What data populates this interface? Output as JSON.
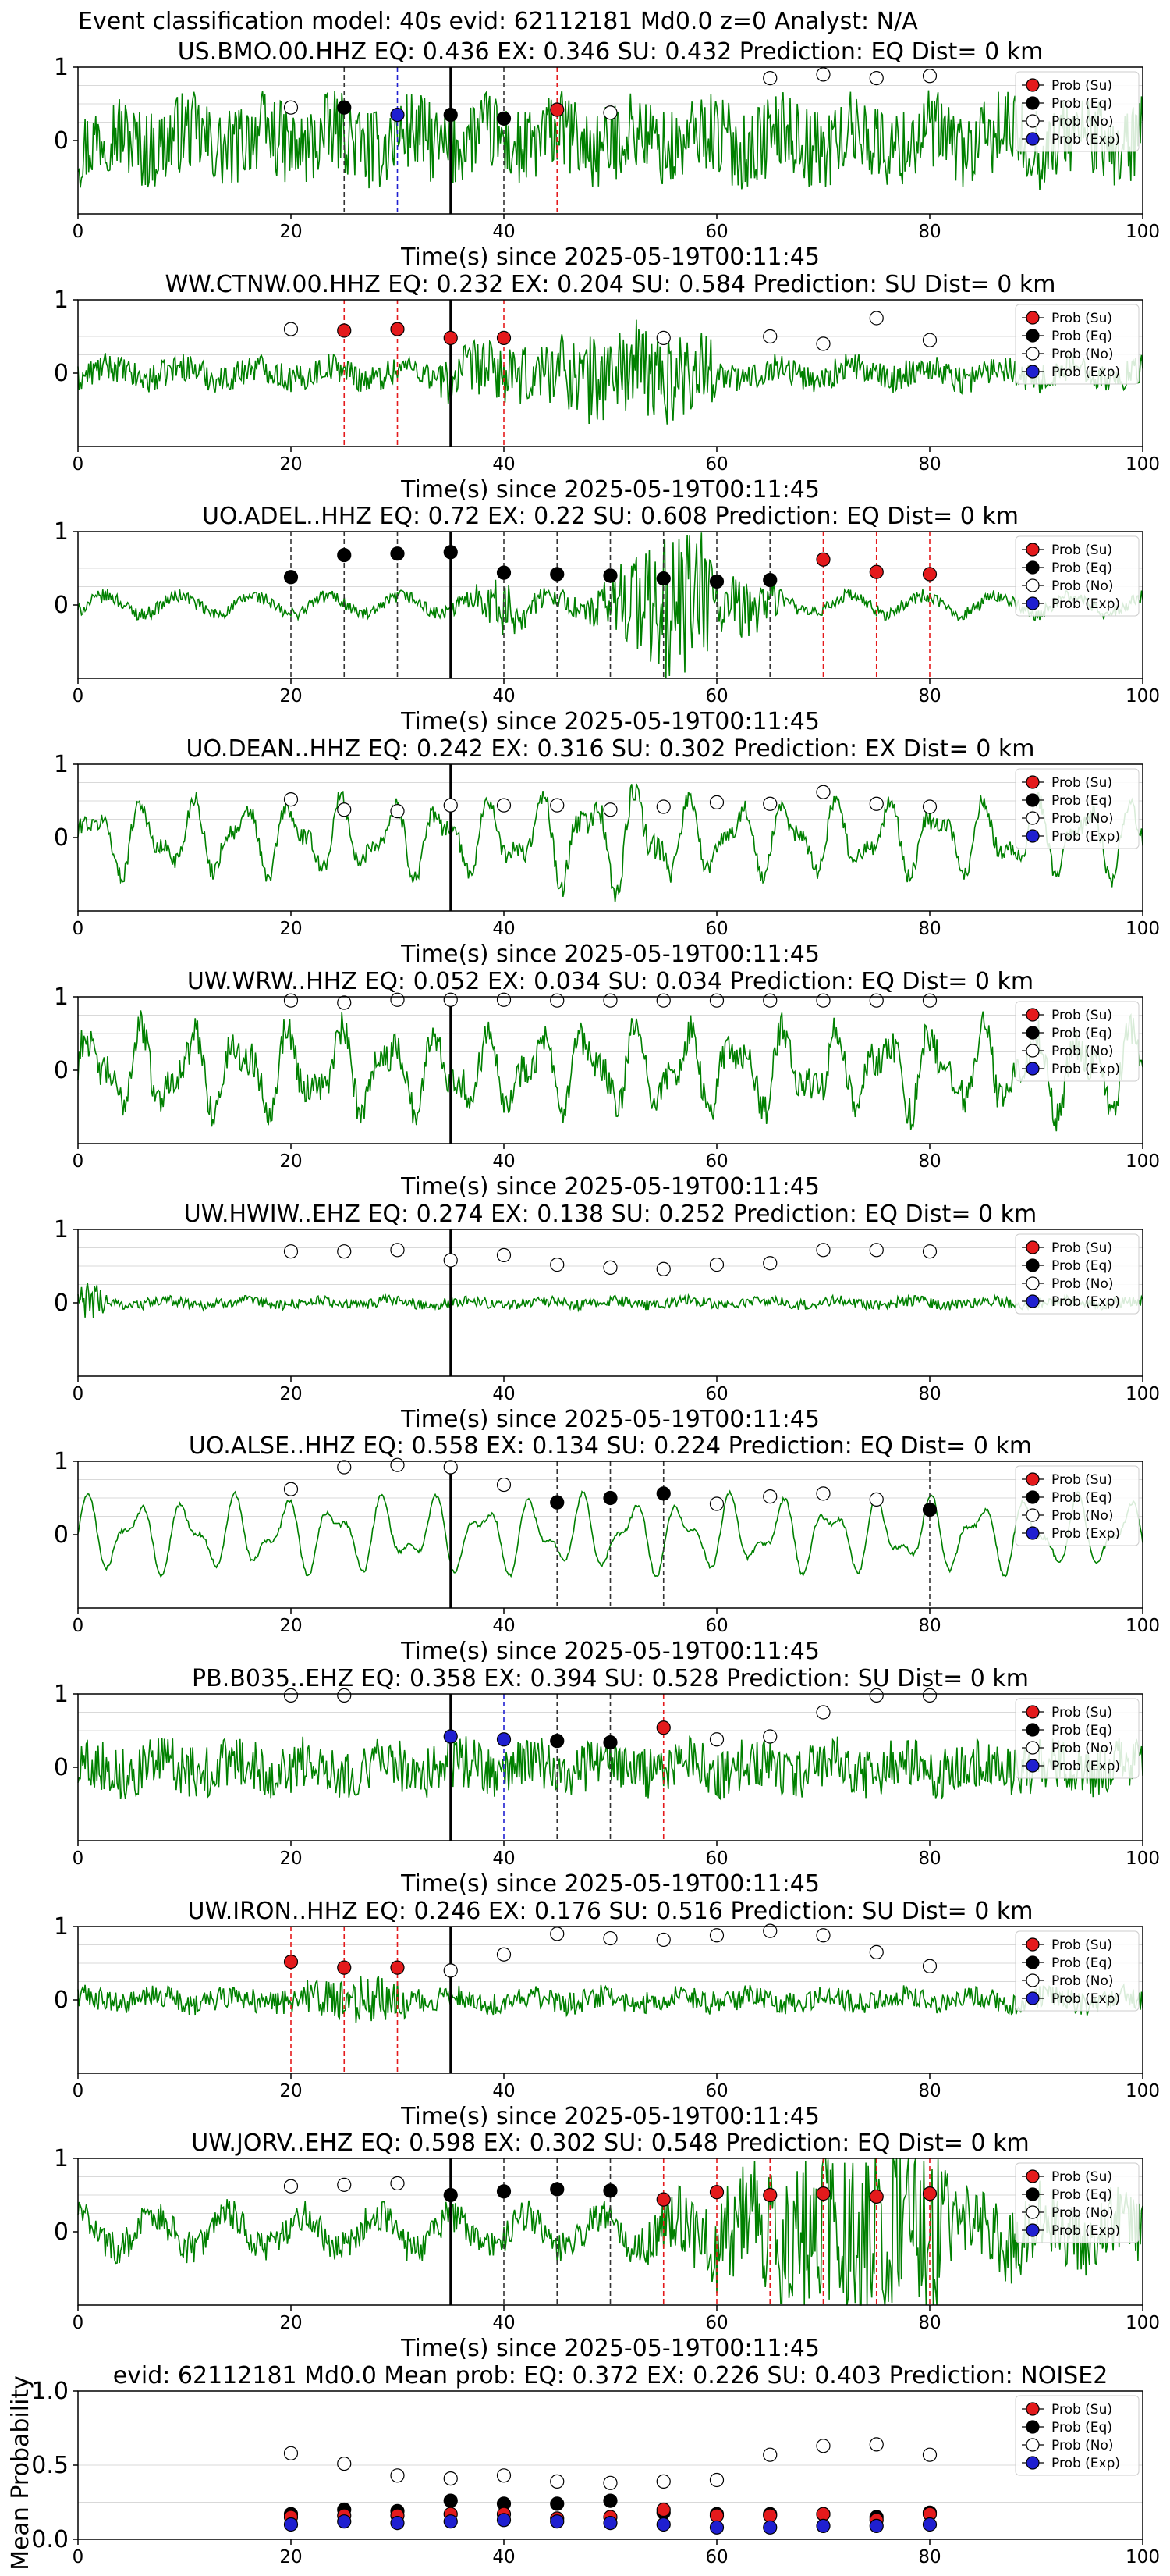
{
  "figure_title": "Event classification model: 40s evid: 62112181 Md0.0 z=0 Analyst: N/A",
  "legend_labels": [
    "Prob (Su)",
    "Prob (Eq)",
    "Prob (No)",
    "Prob (Exp)"
  ],
  "colors": {
    "waveform": "#008000",
    "su": "#e41a1c",
    "eq": "#000000",
    "no": "#ffffff",
    "exp": "#1f1fd0",
    "marker_edge": "#000000",
    "grid": "#d9d9d9"
  },
  "chart_data": [
    {
      "type": "scatter",
      "station": "US.BMO.00.HHZ",
      "title": "US.BMO.00.HHZ   EQ: 0.436  EX: 0.346  SU: 0.432   Prediction: EQ    Dist= 0 km",
      "xlabel": "Time(s) since 2025-05-19T00:11:45",
      "xlim": [
        0,
        100
      ],
      "xticks": [
        0,
        20,
        40,
        60,
        80,
        100
      ],
      "ylim": [
        -1,
        1
      ],
      "yticks": [
        0,
        1
      ],
      "wave_style": "broadband",
      "wave_amp": 0.55,
      "pick_line": 35,
      "points": [
        {
          "x": 20,
          "y": 0.45,
          "cls": "no"
        },
        {
          "x": 25,
          "y": 0.45,
          "cls": "eq"
        },
        {
          "x": 30,
          "y": 0.35,
          "cls": "exp"
        },
        {
          "x": 35,
          "y": 0.35,
          "cls": "eq"
        },
        {
          "x": 40,
          "y": 0.3,
          "cls": "eq"
        },
        {
          "x": 45,
          "y": 0.42,
          "cls": "su"
        },
        {
          "x": 50,
          "y": 0.38,
          "cls": "no"
        },
        {
          "x": 65,
          "y": 0.85,
          "cls": "no"
        },
        {
          "x": 70,
          "y": 0.9,
          "cls": "no"
        },
        {
          "x": 75,
          "y": 0.85,
          "cls": "no"
        },
        {
          "x": 80,
          "y": 0.88,
          "cls": "no"
        }
      ]
    },
    {
      "type": "scatter",
      "station": "WW.CTNW.00.HHZ",
      "title": "WW.CTNW.00.HHZ   EQ: 0.232  EX: 0.204  SU: 0.584   Prediction: SU    Dist= 0 km",
      "xlabel": "Time(s) since 2025-05-19T00:11:45",
      "xlim": [
        0,
        100
      ],
      "xticks": [
        0,
        20,
        40,
        60,
        80,
        100
      ],
      "ylim": [
        -1,
        1
      ],
      "yticks": [
        0,
        1
      ],
      "wave_style": "noisy_burst",
      "wave_amp": 0.35,
      "pick_line": 35,
      "points": [
        {
          "x": 20,
          "y": 0.6,
          "cls": "no"
        },
        {
          "x": 25,
          "y": 0.58,
          "cls": "su"
        },
        {
          "x": 30,
          "y": 0.6,
          "cls": "su"
        },
        {
          "x": 35,
          "y": 0.48,
          "cls": "su"
        },
        {
          "x": 40,
          "y": 0.48,
          "cls": "su"
        },
        {
          "x": 55,
          "y": 0.48,
          "cls": "no"
        },
        {
          "x": 65,
          "y": 0.5,
          "cls": "no"
        },
        {
          "x": 70,
          "y": 0.4,
          "cls": "no"
        },
        {
          "x": 75,
          "y": 0.75,
          "cls": "no"
        },
        {
          "x": 80,
          "y": 0.45,
          "cls": "no"
        }
      ]
    },
    {
      "type": "scatter",
      "station": "UO.ADEL..HHZ",
      "title": "UO.ADEL..HHZ   EQ: 0.72  EX: 0.22  SU: 0.608   Prediction: EQ    Dist= 0 km",
      "xlabel": "Time(s) since 2025-05-19T00:11:45",
      "xlim": [
        0,
        100
      ],
      "xticks": [
        0,
        20,
        40,
        60,
        80,
        100
      ],
      "ylim": [
        -1,
        1
      ],
      "yticks": [
        0,
        1
      ],
      "wave_style": "quiet_event",
      "wave_amp": 0.5,
      "pick_line": 35,
      "points": [
        {
          "x": 20,
          "y": 0.38,
          "cls": "eq"
        },
        {
          "x": 25,
          "y": 0.68,
          "cls": "eq"
        },
        {
          "x": 30,
          "y": 0.7,
          "cls": "eq"
        },
        {
          "x": 35,
          "y": 0.72,
          "cls": "eq"
        },
        {
          "x": 40,
          "y": 0.44,
          "cls": "eq"
        },
        {
          "x": 45,
          "y": 0.42,
          "cls": "eq"
        },
        {
          "x": 50,
          "y": 0.4,
          "cls": "eq"
        },
        {
          "x": 55,
          "y": 0.36,
          "cls": "eq"
        },
        {
          "x": 60,
          "y": 0.32,
          "cls": "eq"
        },
        {
          "x": 65,
          "y": 0.34,
          "cls": "eq"
        },
        {
          "x": 70,
          "y": 0.62,
          "cls": "su"
        },
        {
          "x": 75,
          "y": 0.45,
          "cls": "su"
        },
        {
          "x": 80,
          "y": 0.42,
          "cls": "su"
        }
      ]
    },
    {
      "type": "scatter",
      "station": "UO.DEAN..HHZ",
      "title": "UO.DEAN..HHZ   EQ: 0.242  EX: 0.316  SU: 0.302   Prediction: EX    Dist= 0 km",
      "xlabel": "Time(s) since 2025-05-19T00:11:45",
      "xlim": [
        0,
        100
      ],
      "xticks": [
        0,
        20,
        40,
        60,
        80,
        100
      ],
      "ylim": [
        -1,
        1
      ],
      "yticks": [
        0,
        1
      ],
      "wave_style": "lowfreq",
      "wave_amp": 0.6,
      "pick_line": 35,
      "points": [
        {
          "x": 20,
          "y": 0.52,
          "cls": "no"
        },
        {
          "x": 25,
          "y": 0.38,
          "cls": "no"
        },
        {
          "x": 30,
          "y": 0.36,
          "cls": "no"
        },
        {
          "x": 35,
          "y": 0.44,
          "cls": "no"
        },
        {
          "x": 40,
          "y": 0.44,
          "cls": "no"
        },
        {
          "x": 45,
          "y": 0.44,
          "cls": "no"
        },
        {
          "x": 50,
          "y": 0.38,
          "cls": "no"
        },
        {
          "x": 55,
          "y": 0.42,
          "cls": "no"
        },
        {
          "x": 60,
          "y": 0.48,
          "cls": "no"
        },
        {
          "x": 65,
          "y": 0.46,
          "cls": "no"
        },
        {
          "x": 70,
          "y": 0.62,
          "cls": "no"
        },
        {
          "x": 75,
          "y": 0.46,
          "cls": "no"
        },
        {
          "x": 80,
          "y": 0.42,
          "cls": "no"
        }
      ]
    },
    {
      "type": "scatter",
      "station": "UW.WRW..HHZ",
      "title": "UW.WRW..HHZ   EQ: 0.052  EX: 0.034  SU: 0.034   Prediction: EQ    Dist= 0 km",
      "xlabel": "Time(s) since 2025-05-19T00:11:45",
      "xlim": [
        0,
        100
      ],
      "xticks": [
        0,
        20,
        40,
        60,
        80,
        100
      ],
      "ylim": [
        -1,
        1
      ],
      "yticks": [
        0,
        1
      ],
      "wave_style": "lowfreq_noisy",
      "wave_amp": 0.65,
      "pick_line": 35,
      "points": [
        {
          "x": 20,
          "y": 0.95,
          "cls": "no"
        },
        {
          "x": 25,
          "y": 0.92,
          "cls": "no"
        },
        {
          "x": 30,
          "y": 0.96,
          "cls": "no"
        },
        {
          "x": 35,
          "y": 0.96,
          "cls": "no"
        },
        {
          "x": 40,
          "y": 0.96,
          "cls": "no"
        },
        {
          "x": 45,
          "y": 0.95,
          "cls": "no"
        },
        {
          "x": 50,
          "y": 0.95,
          "cls": "no"
        },
        {
          "x": 55,
          "y": 0.95,
          "cls": "no"
        },
        {
          "x": 60,
          "y": 0.95,
          "cls": "no"
        },
        {
          "x": 65,
          "y": 0.95,
          "cls": "no"
        },
        {
          "x": 70,
          "y": 0.95,
          "cls": "no"
        },
        {
          "x": 75,
          "y": 0.95,
          "cls": "no"
        },
        {
          "x": 80,
          "y": 0.95,
          "cls": "no"
        }
      ]
    },
    {
      "type": "scatter",
      "station": "UW.HWIW..EHZ",
      "title": "UW.HWIW..EHZ   EQ: 0.274  EX: 0.138  SU: 0.252   Prediction: EQ    Dist= 0 km",
      "xlabel": "Time(s) since 2025-05-19T00:11:45",
      "xlim": [
        0,
        100
      ],
      "xticks": [
        0,
        20,
        40,
        60,
        80,
        100
      ],
      "ylim": [
        -1,
        1
      ],
      "yticks": [
        0,
        1
      ],
      "wave_style": "quiet",
      "wave_amp": 0.12,
      "pick_line": 35,
      "points": [
        {
          "x": 20,
          "y": 0.7,
          "cls": "no"
        },
        {
          "x": 25,
          "y": 0.7,
          "cls": "no"
        },
        {
          "x": 30,
          "y": 0.72,
          "cls": "no"
        },
        {
          "x": 35,
          "y": 0.58,
          "cls": "no"
        },
        {
          "x": 40,
          "y": 0.65,
          "cls": "no"
        },
        {
          "x": 45,
          "y": 0.52,
          "cls": "no"
        },
        {
          "x": 50,
          "y": 0.48,
          "cls": "no"
        },
        {
          "x": 55,
          "y": 0.46,
          "cls": "no"
        },
        {
          "x": 60,
          "y": 0.52,
          "cls": "no"
        },
        {
          "x": 65,
          "y": 0.54,
          "cls": "no"
        },
        {
          "x": 70,
          "y": 0.72,
          "cls": "no"
        },
        {
          "x": 75,
          "y": 0.72,
          "cls": "no"
        },
        {
          "x": 80,
          "y": 0.7,
          "cls": "no"
        }
      ]
    },
    {
      "type": "scatter",
      "station": "UO.ALSE..HHZ",
      "title": "UO.ALSE..HHZ   EQ: 0.558  EX: 0.134  SU: 0.224   Prediction: EQ    Dist= 0 km",
      "xlabel": "Time(s) since 2025-05-19T00:11:45",
      "xlim": [
        0,
        100
      ],
      "xticks": [
        0,
        20,
        40,
        60,
        80,
        100
      ],
      "ylim": [
        -1,
        1
      ],
      "yticks": [
        0,
        1
      ],
      "wave_style": "smooth_lowfreq",
      "wave_amp": 0.6,
      "pick_line": 35,
      "points": [
        {
          "x": 20,
          "y": 0.62,
          "cls": "no"
        },
        {
          "x": 25,
          "y": 0.92,
          "cls": "no"
        },
        {
          "x": 30,
          "y": 0.95,
          "cls": "no"
        },
        {
          "x": 35,
          "y": 0.92,
          "cls": "no"
        },
        {
          "x": 40,
          "y": 0.68,
          "cls": "no"
        },
        {
          "x": 45,
          "y": 0.44,
          "cls": "eq"
        },
        {
          "x": 50,
          "y": 0.5,
          "cls": "eq"
        },
        {
          "x": 55,
          "y": 0.56,
          "cls": "eq"
        },
        {
          "x": 60,
          "y": 0.42,
          "cls": "no"
        },
        {
          "x": 65,
          "y": 0.52,
          "cls": "no"
        },
        {
          "x": 70,
          "y": 0.56,
          "cls": "no"
        },
        {
          "x": 75,
          "y": 0.48,
          "cls": "no"
        },
        {
          "x": 80,
          "y": 0.34,
          "cls": "eq"
        }
      ]
    },
    {
      "type": "scatter",
      "station": "PB.B035..EHZ",
      "title": "PB.B035..EHZ   EQ: 0.358  EX: 0.394  SU: 0.528   Prediction: SU    Dist= 0 km",
      "xlabel": "Time(s) since 2025-05-19T00:11:45",
      "xlim": [
        0,
        100
      ],
      "xticks": [
        0,
        20,
        40,
        60,
        80,
        100
      ],
      "ylim": [
        -1,
        1
      ],
      "yticks": [
        0,
        1
      ],
      "wave_style": "noisy",
      "wave_amp": 0.35,
      "pick_line": 35,
      "points": [
        {
          "x": 20,
          "y": 0.98,
          "cls": "no"
        },
        {
          "x": 25,
          "y": 0.98,
          "cls": "no"
        },
        {
          "x": 35,
          "y": 0.42,
          "cls": "exp"
        },
        {
          "x": 40,
          "y": 0.38,
          "cls": "exp"
        },
        {
          "x": 45,
          "y": 0.36,
          "cls": "eq"
        },
        {
          "x": 50,
          "y": 0.34,
          "cls": "eq"
        },
        {
          "x": 55,
          "y": 0.54,
          "cls": "su"
        },
        {
          "x": 60,
          "y": 0.38,
          "cls": "no"
        },
        {
          "x": 65,
          "y": 0.42,
          "cls": "no"
        },
        {
          "x": 70,
          "y": 0.75,
          "cls": "no"
        },
        {
          "x": 75,
          "y": 0.98,
          "cls": "no"
        },
        {
          "x": 80,
          "y": 0.98,
          "cls": "no"
        }
      ]
    },
    {
      "type": "scatter",
      "station": "UW.IRON..HHZ",
      "title": "UW.IRON..HHZ   EQ: 0.246  EX: 0.176  SU: 0.516   Prediction: SU    Dist= 0 km",
      "xlabel": "Time(s) since 2025-05-19T00:11:45",
      "xlim": [
        0,
        100
      ],
      "xticks": [
        0,
        20,
        40,
        60,
        80,
        100
      ],
      "ylim": [
        -1,
        1
      ],
      "yticks": [
        0,
        1
      ],
      "wave_style": "quiet_noisy",
      "wave_amp": 0.22,
      "pick_line": 35,
      "points": [
        {
          "x": 20,
          "y": 0.52,
          "cls": "su"
        },
        {
          "x": 25,
          "y": 0.44,
          "cls": "su"
        },
        {
          "x": 30,
          "y": 0.44,
          "cls": "su"
        },
        {
          "x": 35,
          "y": 0.4,
          "cls": "no"
        },
        {
          "x": 40,
          "y": 0.62,
          "cls": "no"
        },
        {
          "x": 45,
          "y": 0.9,
          "cls": "no"
        },
        {
          "x": 50,
          "y": 0.84,
          "cls": "no"
        },
        {
          "x": 55,
          "y": 0.82,
          "cls": "no"
        },
        {
          "x": 60,
          "y": 0.88,
          "cls": "no"
        },
        {
          "x": 65,
          "y": 0.94,
          "cls": "no"
        },
        {
          "x": 70,
          "y": 0.88,
          "cls": "no"
        },
        {
          "x": 75,
          "y": 0.65,
          "cls": "no"
        },
        {
          "x": 80,
          "y": 0.46,
          "cls": "no"
        }
      ]
    },
    {
      "type": "scatter",
      "station": "UW.JORV..EHZ",
      "title": "UW.JORV..EHZ   EQ: 0.598  EX: 0.302  SU: 0.548   Prediction: EQ    Dist= 0 km",
      "xlabel": "Time(s) since 2025-05-19T00:11:45",
      "xlim": [
        0,
        100
      ],
      "xticks": [
        0,
        20,
        40,
        60,
        80,
        100
      ],
      "ylim": [
        -1,
        1
      ],
      "yticks": [
        0,
        1
      ],
      "wave_style": "growing",
      "wave_amp": 0.9,
      "pick_line": 35,
      "points": [
        {
          "x": 20,
          "y": 0.62,
          "cls": "no"
        },
        {
          "x": 25,
          "y": 0.64,
          "cls": "no"
        },
        {
          "x": 30,
          "y": 0.66,
          "cls": "no"
        },
        {
          "x": 35,
          "y": 0.5,
          "cls": "eq"
        },
        {
          "x": 40,
          "y": 0.55,
          "cls": "eq"
        },
        {
          "x": 45,
          "y": 0.58,
          "cls": "eq"
        },
        {
          "x": 50,
          "y": 0.56,
          "cls": "eq"
        },
        {
          "x": 55,
          "y": 0.44,
          "cls": "su"
        },
        {
          "x": 60,
          "y": 0.54,
          "cls": "su"
        },
        {
          "x": 65,
          "y": 0.5,
          "cls": "su"
        },
        {
          "x": 70,
          "y": 0.52,
          "cls": "su"
        },
        {
          "x": 75,
          "y": 0.48,
          "cls": "su"
        },
        {
          "x": 80,
          "y": 0.52,
          "cls": "su"
        }
      ]
    },
    {
      "type": "scatter",
      "station": "mean",
      "title": "evid: 62112181  Md0.0   Mean prob:   EQ: 0.372  EX: 0.226  SU: 0.403   Prediction: NOISE2",
      "xlabel": "",
      "ylabel": "Mean Probability",
      "xlim": [
        0,
        100
      ],
      "xticks": [
        0,
        20,
        40,
        60,
        80,
        100
      ],
      "ylim": [
        0,
        1
      ],
      "yticks": [
        0.0,
        0.5,
        1.0
      ],
      "ytick_labels": [
        "0.0",
        "0.5",
        "1.0"
      ],
      "x": [
        20,
        25,
        30,
        35,
        40,
        45,
        50,
        55,
        60,
        65,
        70,
        75,
        80
      ],
      "series": [
        {
          "cls": "no",
          "name": "Prob (No)",
          "values": [
            0.58,
            0.51,
            0.43,
            0.41,
            0.43,
            0.39,
            0.38,
            0.39,
            0.4,
            0.57,
            0.63,
            0.64,
            0.57
          ]
        },
        {
          "cls": "eq",
          "name": "Prob (Eq)",
          "values": [
            0.17,
            0.2,
            0.19,
            0.26,
            0.24,
            0.24,
            0.26,
            0.18,
            0.17,
            0.17,
            0.17,
            0.15,
            0.18
          ]
        },
        {
          "cls": "su",
          "name": "Prob (Su)",
          "values": [
            0.15,
            0.16,
            0.16,
            0.17,
            0.17,
            0.14,
            0.15,
            0.2,
            0.16,
            0.16,
            0.17,
            0.13,
            0.17
          ]
        },
        {
          "cls": "exp",
          "name": "Prob (Exp)",
          "values": [
            0.1,
            0.12,
            0.11,
            0.12,
            0.13,
            0.12,
            0.11,
            0.1,
            0.08,
            0.08,
            0.09,
            0.09,
            0.1
          ]
        }
      ]
    }
  ]
}
